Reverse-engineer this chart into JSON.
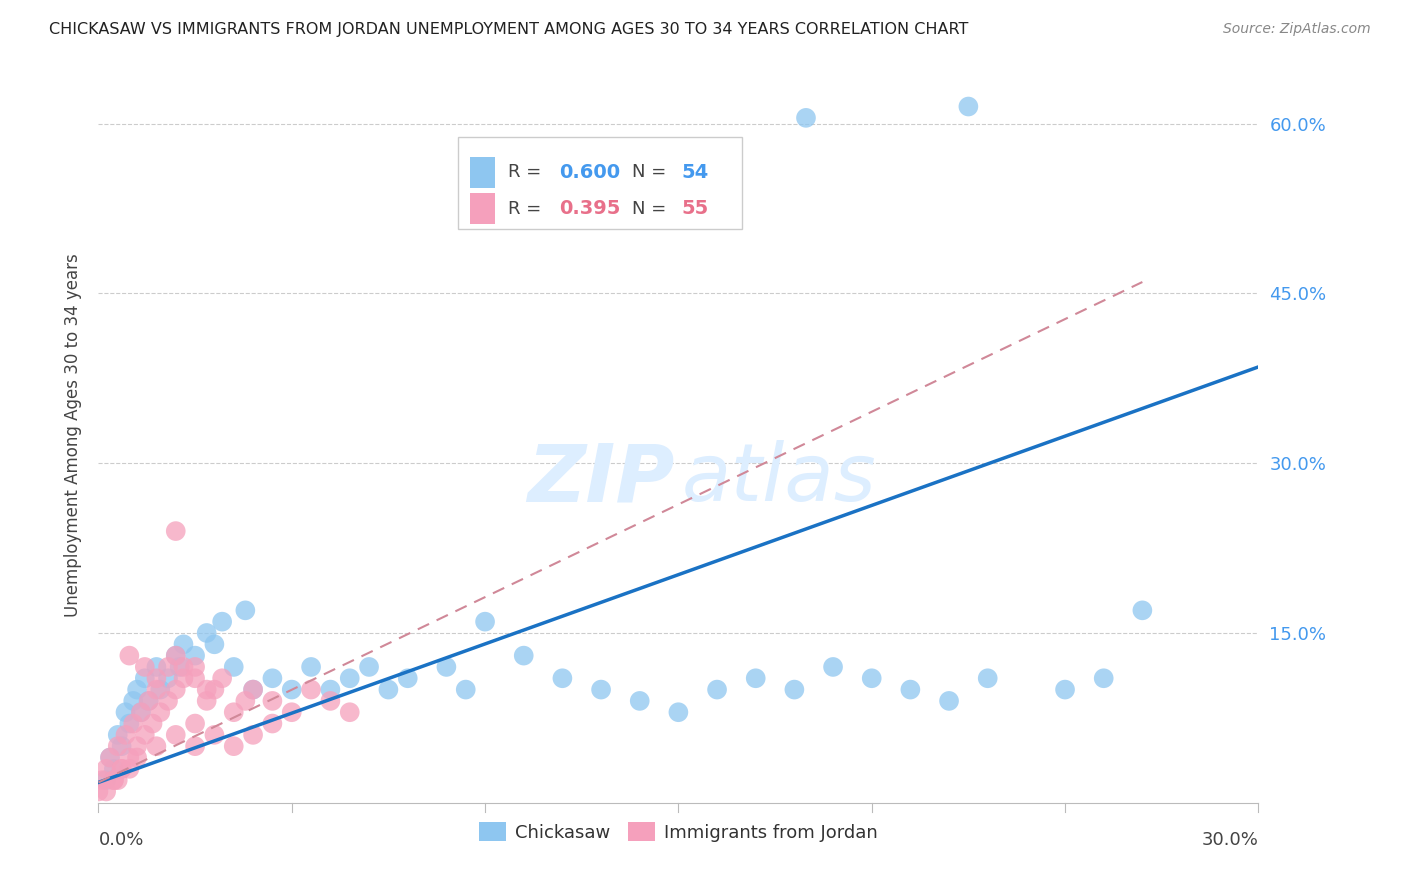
{
  "title": "CHICKASAW VS IMMIGRANTS FROM JORDAN UNEMPLOYMENT AMONG AGES 30 TO 34 YEARS CORRELATION CHART",
  "source": "Source: ZipAtlas.com",
  "ylabel": "Unemployment Among Ages 30 to 34 years",
  "xmin": 0.0,
  "xmax": 0.3,
  "ymin": 0.0,
  "ymax": 0.65,
  "blue_color": "#8ec6f0",
  "pink_color": "#f5a0bc",
  "blue_line_color": "#1a72c4",
  "pink_line_color": "#d08898",
  "blue_line_x0": 0.0,
  "blue_line_y0": 0.018,
  "blue_line_x1": 0.3,
  "blue_line_y1": 0.385,
  "pink_line_x0": 0.0,
  "pink_line_y0": 0.018,
  "pink_line_x1": 0.27,
  "pink_line_y1": 0.46,
  "chickasaw_x": [
    0.002,
    0.003,
    0.004,
    0.005,
    0.006,
    0.007,
    0.008,
    0.009,
    0.01,
    0.011,
    0.012,
    0.013,
    0.015,
    0.016,
    0.018,
    0.02,
    0.021,
    0.022,
    0.025,
    0.028,
    0.03,
    0.032,
    0.035,
    0.038,
    0.04,
    0.045,
    0.05,
    0.055,
    0.06,
    0.065,
    0.07,
    0.075,
    0.08,
    0.09,
    0.095,
    0.1,
    0.11,
    0.12,
    0.13,
    0.14,
    0.15,
    0.16,
    0.17,
    0.18,
    0.19,
    0.2,
    0.21,
    0.22,
    0.23,
    0.25,
    0.26,
    0.27,
    0.183,
    0.225
  ],
  "chickasaw_y": [
    0.02,
    0.04,
    0.03,
    0.06,
    0.05,
    0.08,
    0.07,
    0.09,
    0.1,
    0.08,
    0.11,
    0.09,
    0.12,
    0.1,
    0.11,
    0.13,
    0.12,
    0.14,
    0.13,
    0.15,
    0.14,
    0.16,
    0.12,
    0.17,
    0.1,
    0.11,
    0.1,
    0.12,
    0.1,
    0.11,
    0.12,
    0.1,
    0.11,
    0.12,
    0.1,
    0.16,
    0.13,
    0.11,
    0.1,
    0.09,
    0.08,
    0.1,
    0.11,
    0.1,
    0.12,
    0.11,
    0.1,
    0.09,
    0.11,
    0.1,
    0.11,
    0.17,
    0.605,
    0.615
  ],
  "jordan_x": [
    0.0,
    0.001,
    0.002,
    0.003,
    0.004,
    0.005,
    0.006,
    0.007,
    0.008,
    0.009,
    0.01,
    0.011,
    0.012,
    0.013,
    0.014,
    0.015,
    0.016,
    0.018,
    0.02,
    0.022,
    0.025,
    0.028,
    0.03,
    0.032,
    0.035,
    0.038,
    0.04,
    0.045,
    0.05,
    0.055,
    0.06,
    0.065,
    0.008,
    0.012,
    0.015,
    0.018,
    0.02,
    0.022,
    0.025,
    0.028,
    0.005,
    0.008,
    0.01,
    0.015,
    0.02,
    0.025,
    0.03,
    0.035,
    0.04,
    0.045,
    0.002,
    0.004,
    0.006,
    0.02,
    0.025
  ],
  "jordan_y": [
    0.01,
    0.02,
    0.03,
    0.04,
    0.02,
    0.05,
    0.03,
    0.06,
    0.04,
    0.07,
    0.05,
    0.08,
    0.06,
    0.09,
    0.07,
    0.1,
    0.08,
    0.09,
    0.1,
    0.11,
    0.12,
    0.09,
    0.1,
    0.11,
    0.08,
    0.09,
    0.1,
    0.09,
    0.08,
    0.1,
    0.09,
    0.08,
    0.13,
    0.12,
    0.11,
    0.12,
    0.13,
    0.12,
    0.11,
    0.1,
    0.02,
    0.03,
    0.04,
    0.05,
    0.06,
    0.07,
    0.06,
    0.05,
    0.06,
    0.07,
    0.01,
    0.02,
    0.03,
    0.24,
    0.05
  ],
  "ytick_vals": [
    0.15,
    0.3,
    0.45,
    0.6
  ],
  "ytick_labels": [
    "15.0%",
    "30.0%",
    "45.0%",
    "60.0%"
  ],
  "tick_color": "#4499ee",
  "grid_color": "#cccccc",
  "watermark_color": "#ddeeff"
}
